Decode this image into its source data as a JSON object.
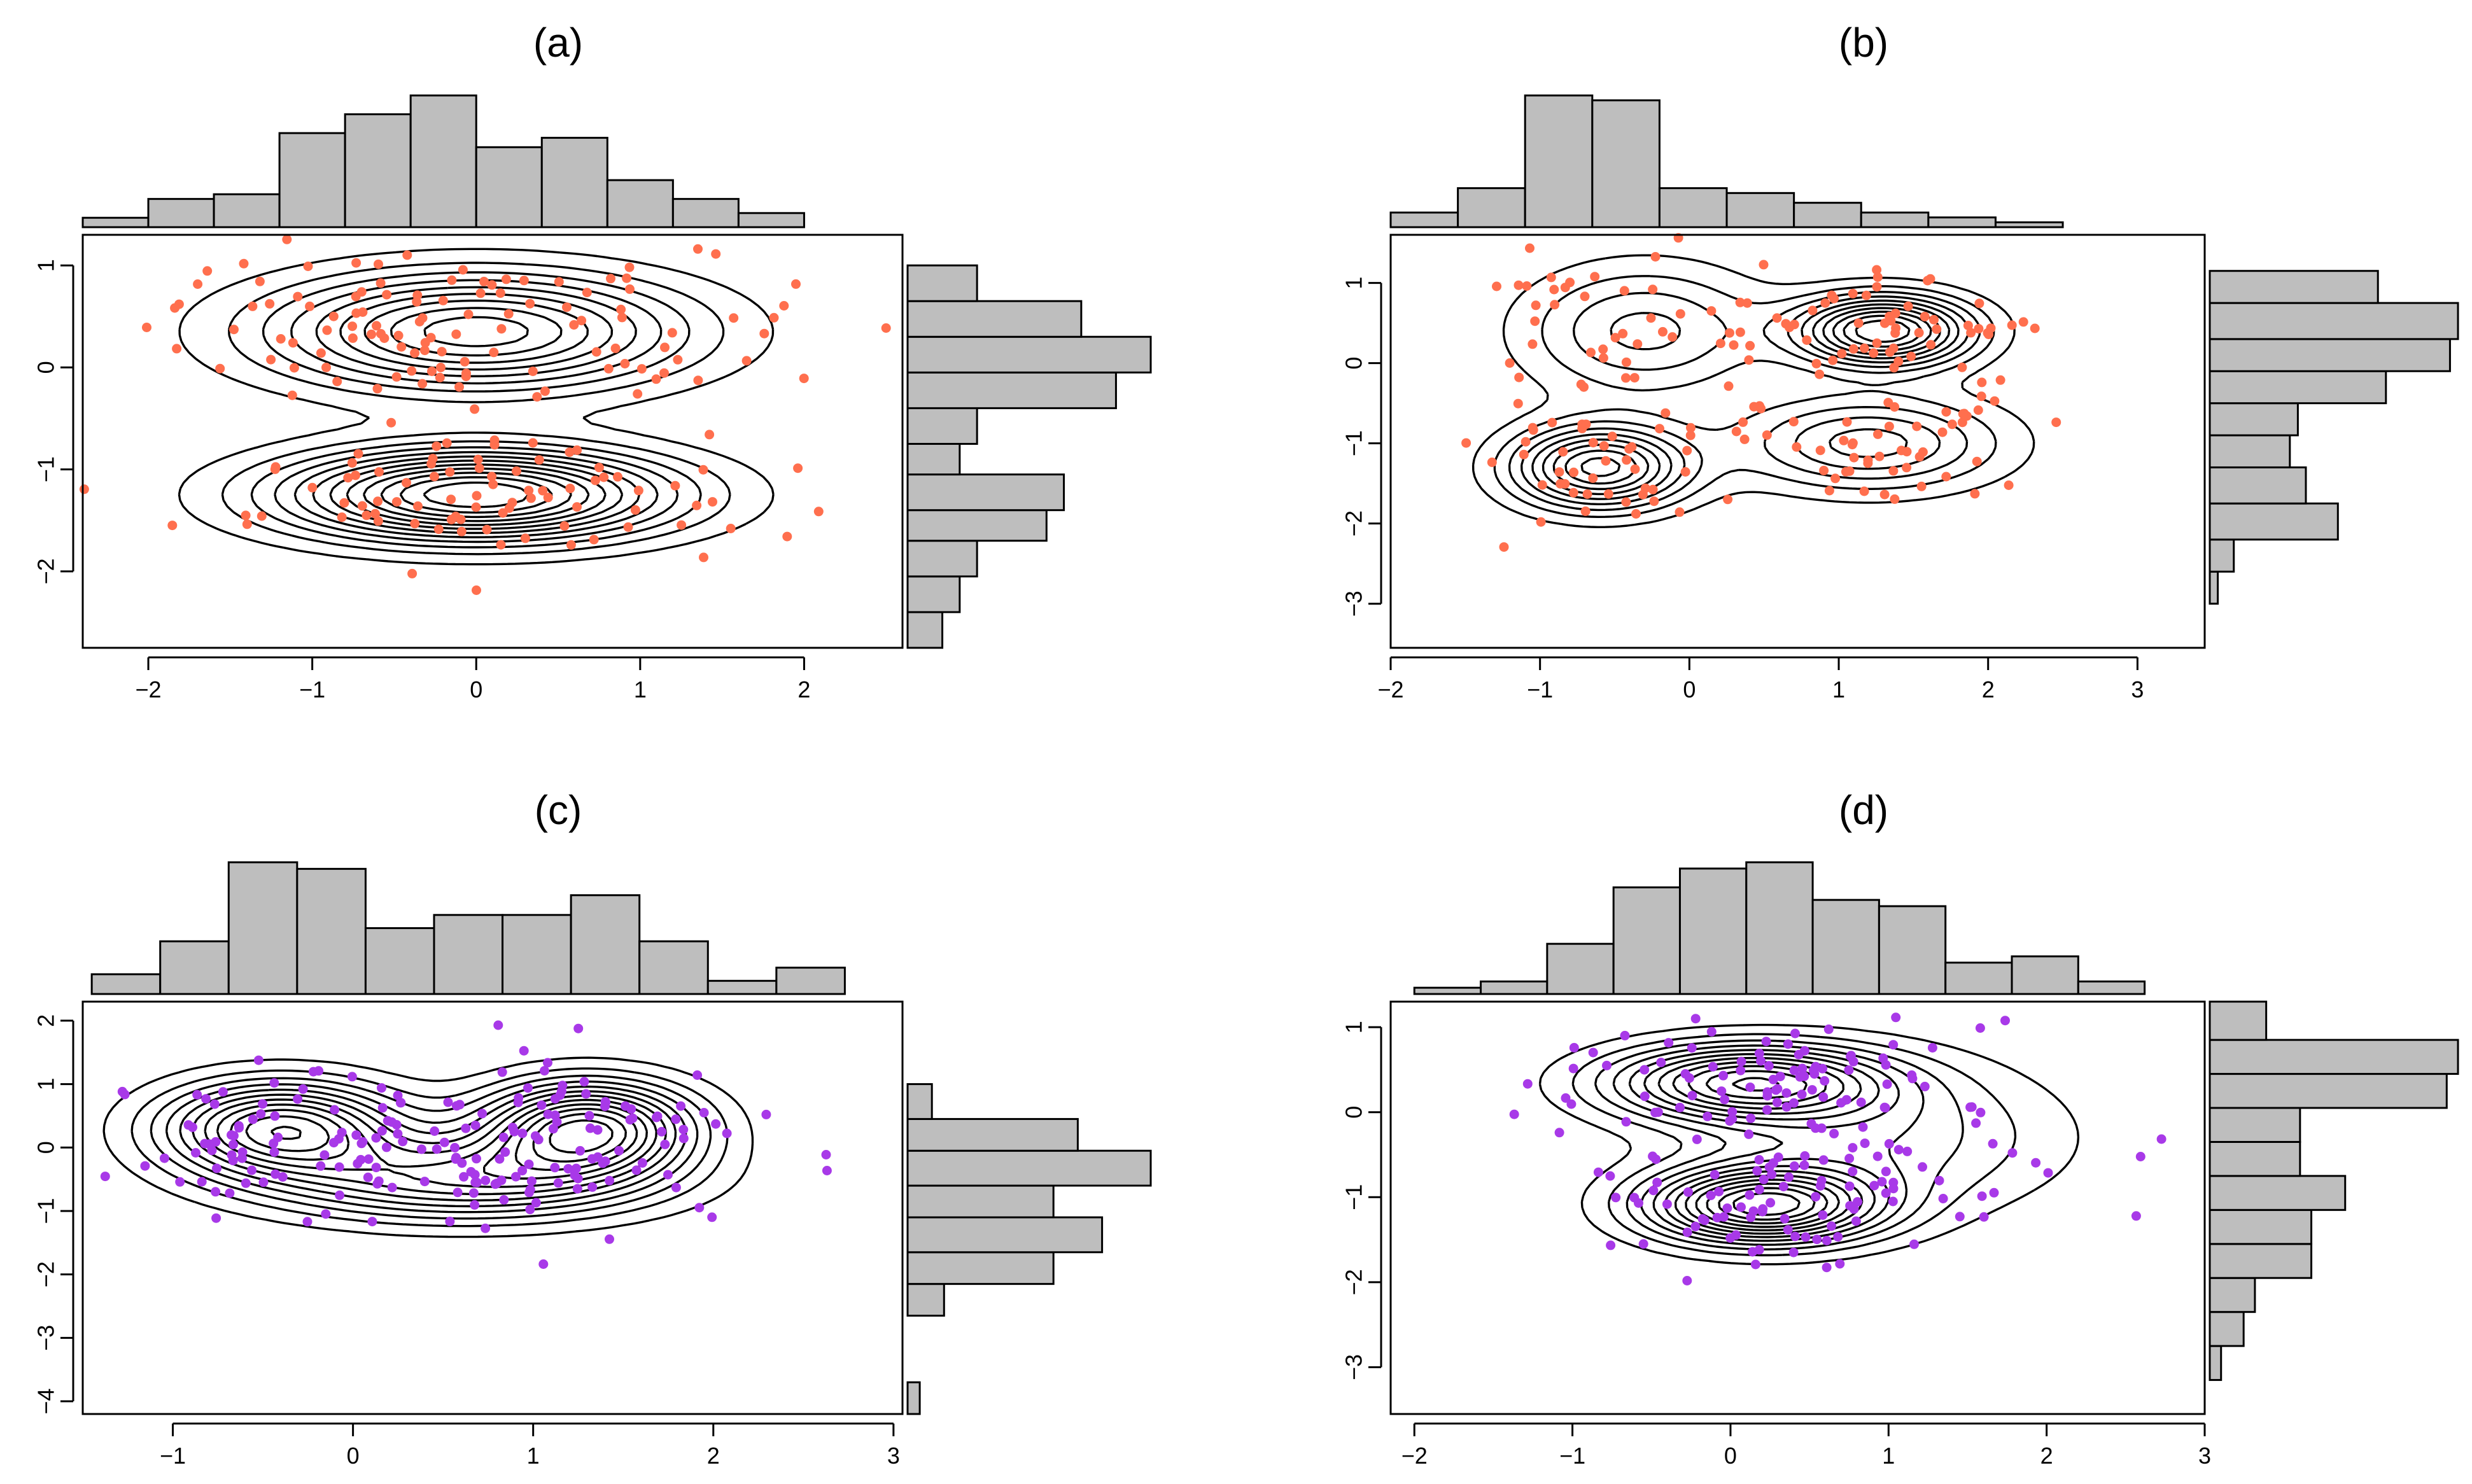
{
  "figure": {
    "background": "#ffffff"
  },
  "chart_data": [
    {
      "id": "a",
      "type": "scatter",
      "title": "(a)",
      "point_color": "#ff6f4e",
      "xlim": [
        -2.4,
        2.6
      ],
      "ylim": [
        -2.75,
        1.3
      ],
      "xticks": [
        -2,
        -1,
        0,
        1,
        2
      ],
      "yticks": [
        -2,
        -1,
        0,
        1
      ],
      "centers": [
        [
          0,
          0.35,
          0.85,
          0.38
        ],
        [
          0,
          -1.25,
          0.8,
          0.3
        ]
      ],
      "n_points": 200,
      "seed": 11,
      "contour_levels": 12,
      "marginal_x": {
        "breaks": [
          -2.4,
          -2.0,
          -1.6,
          -1.2,
          -0.8,
          -0.4,
          0.0,
          0.4,
          0.8,
          1.2,
          1.6,
          2.0,
          2.4
        ],
        "counts": [
          2,
          6,
          7,
          20,
          24,
          28,
          17,
          19,
          10,
          6,
          3,
          0
        ]
      },
      "marginal_y": {
        "breaks": [
          -2.75,
          -2.4,
          -2.05,
          -1.7,
          -1.4,
          -1.05,
          -0.75,
          -0.4,
          -0.05,
          0.3,
          0.65,
          1.0,
          1.3
        ],
        "counts": [
          2,
          3,
          4,
          8,
          9,
          3,
          4,
          12,
          14,
          10,
          4,
          0
        ]
      }
    },
    {
      "id": "b",
      "type": "scatter",
      "title": "(b)",
      "point_color": "#ff6f4e",
      "xlim": [
        -2.0,
        3.45
      ],
      "ylim": [
        -3.55,
        1.6
      ],
      "xticks": [
        -2,
        -1,
        0,
        1,
        2,
        3
      ],
      "yticks": [
        -3,
        -2,
        -1,
        0,
        1
      ],
      "centers": [
        [
          -0.3,
          0.4,
          0.55,
          0.55
        ],
        [
          -0.6,
          -1.3,
          0.4,
          0.35
        ],
        [
          1.3,
          0.4,
          0.4,
          0.3
        ],
        [
          1.2,
          -1.0,
          0.6,
          0.4
        ]
      ],
      "n_points": 200,
      "seed": 23,
      "contour_levels": 10,
      "marginal_x": {
        "breaks": [
          -2.0,
          -1.55,
          -1.1,
          -0.65,
          -0.2,
          0.25,
          0.7,
          1.15,
          1.6,
          2.05,
          2.5,
          2.95,
          3.45
        ],
        "counts": [
          3,
          8,
          27,
          26,
          8,
          7,
          5,
          3,
          2,
          1,
          0,
          0
        ]
      },
      "marginal_y": {
        "breaks": [
          -3.55,
          -3.0,
          -2.6,
          -2.2,
          -1.75,
          -1.3,
          -0.9,
          -0.5,
          -0.1,
          0.3,
          0.75,
          1.15,
          1.6
        ],
        "counts": [
          0,
          1,
          3,
          16,
          12,
          10,
          11,
          22,
          30,
          31,
          21,
          0
        ]
      }
    },
    {
      "id": "c",
      "type": "scatter",
      "title": "(c)",
      "point_color": "#a839e8",
      "xlim": [
        -1.5,
        3.05
      ],
      "ylim": [
        -4.2,
        2.3
      ],
      "xticks": [
        -1,
        0,
        1,
        2,
        3
      ],
      "yticks": [
        -4,
        -3,
        -2,
        -1,
        0,
        1,
        2
      ],
      "centers": [
        [
          -0.4,
          0.3,
          0.45,
          0.5
        ],
        [
          0.6,
          -0.5,
          0.7,
          0.45
        ],
        [
          1.3,
          0.3,
          0.4,
          0.5
        ]
      ],
      "n_points": 200,
      "seed": 37,
      "contour_levels": 12,
      "marginal_x": {
        "breaks": [
          -1.45,
          -1.07,
          -0.69,
          -0.31,
          0.07,
          0.45,
          0.83,
          1.21,
          1.59,
          1.97,
          2.35,
          2.73,
          3.05
        ],
        "counts": [
          3,
          8,
          20,
          19,
          10,
          12,
          12,
          15,
          8,
          2,
          4,
          0
        ]
      },
      "marginal_y": {
        "breaks": [
          -4.2,
          -3.7,
          -3.2,
          -2.65,
          -2.15,
          -1.65,
          -1.1,
          -0.6,
          -0.05,
          0.45,
          1.0,
          1.55,
          2.3
        ],
        "counts": [
          1,
          0,
          0,
          3,
          12,
          16,
          12,
          20,
          14,
          2,
          0,
          0
        ]
      }
    },
    {
      "id": "d",
      "type": "scatter",
      "title": "(d)",
      "point_color": "#a839e8",
      "xlim": [
        -2.15,
        3.0
      ],
      "ylim": [
        -3.55,
        1.3
      ],
      "xticks": [
        -2,
        -1,
        0,
        1,
        2,
        3
      ],
      "yticks": [
        -3,
        -2,
        -1,
        0,
        1
      ],
      "centers": [
        [
          0.1,
          0.35,
          0.6,
          0.3
        ],
        [
          0.2,
          -1.1,
          0.5,
          0.3
        ],
        [
          0.9,
          -0.3,
          0.8,
          0.6
        ]
      ],
      "n_points": 200,
      "seed": 53,
      "contour_levels": 12,
      "marginal_x": {
        "breaks": [
          -2.0,
          -1.58,
          -1.16,
          -0.74,
          -0.32,
          0.1,
          0.52,
          0.94,
          1.36,
          1.78,
          2.2,
          2.62,
          3.0
        ],
        "counts": [
          1,
          2,
          8,
          17,
          20,
          21,
          15,
          14,
          5,
          6,
          2,
          0
        ]
      },
      "marginal_y": {
        "breaks": [
          -3.55,
          -3.15,
          -2.75,
          -2.35,
          -1.95,
          -1.55,
          -1.15,
          -0.75,
          -0.35,
          0.05,
          0.45,
          0.85,
          1.3
        ],
        "counts": [
          0,
          1,
          3,
          4,
          9,
          9,
          12,
          8,
          8,
          21,
          22,
          5
        ]
      }
    }
  ]
}
